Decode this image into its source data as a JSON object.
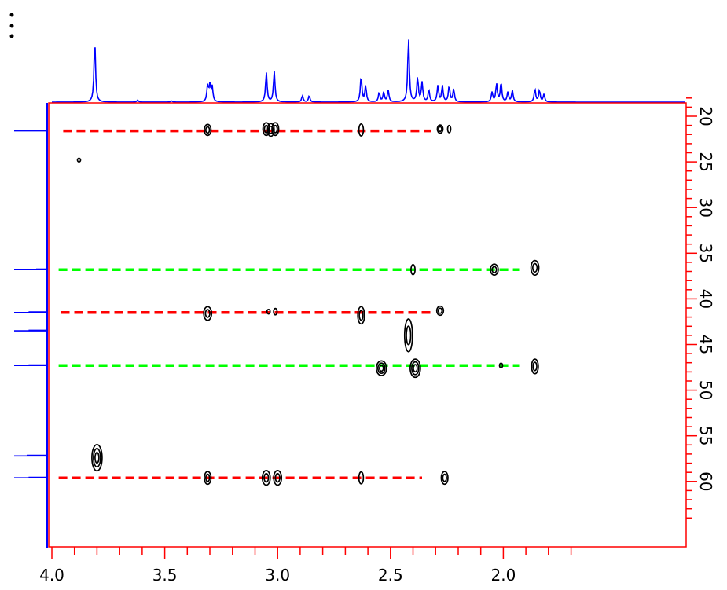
{
  "chart_data": {
    "type": "scatter",
    "title": "",
    "xlabel": "",
    "ylabel": "",
    "x_axis": {
      "reversed": true,
      "range": [
        4.02,
        1.65
      ],
      "major_ticks": [
        "4.0",
        "3.5",
        "3.0",
        "2.5",
        "2.0"
      ]
    },
    "y_axis": {
      "position": "right",
      "reversed": true,
      "range": [
        17,
        65
      ],
      "major_ticks": [
        "20",
        "25",
        "30",
        "35",
        "40",
        "45",
        "50",
        "55",
        "60"
      ]
    },
    "grid": false,
    "colors": {
      "frame": "#ff0000",
      "spectrum": "#0000ff",
      "contour": "#000000",
      "dash_red": "#ff0000",
      "dash_green": "#00ff00"
    },
    "f2_projection_peaks": [
      {
        "x": 3.81,
        "h": 0.97
      },
      {
        "x": 3.62,
        "h": 0.03
      },
      {
        "x": 3.47,
        "h": 0.02
      },
      {
        "x": 3.31,
        "h": 0.25
      },
      {
        "x": 3.3,
        "h": 0.25
      },
      {
        "x": 3.29,
        "h": 0.23
      },
      {
        "x": 3.05,
        "h": 0.46
      },
      {
        "x": 3.015,
        "h": 0.48
      },
      {
        "x": 2.89,
        "h": 0.1
      },
      {
        "x": 2.86,
        "h": 0.1
      },
      {
        "x": 2.63,
        "h": 0.4
      },
      {
        "x": 2.61,
        "h": 0.25
      },
      {
        "x": 2.55,
        "h": 0.15
      },
      {
        "x": 2.53,
        "h": 0.15
      },
      {
        "x": 2.51,
        "h": 0.18
      },
      {
        "x": 2.42,
        "h": 1.0
      },
      {
        "x": 2.38,
        "h": 0.38
      },
      {
        "x": 2.36,
        "h": 0.3
      },
      {
        "x": 2.33,
        "h": 0.18
      },
      {
        "x": 2.29,
        "h": 0.25
      },
      {
        "x": 2.27,
        "h": 0.25
      },
      {
        "x": 2.24,
        "h": 0.25
      },
      {
        "x": 2.22,
        "h": 0.2
      },
      {
        "x": 2.05,
        "h": 0.15
      },
      {
        "x": 2.03,
        "h": 0.28
      },
      {
        "x": 2.01,
        "h": 0.3
      },
      {
        "x": 1.98,
        "h": 0.15
      },
      {
        "x": 1.96,
        "h": 0.18
      },
      {
        "x": 1.86,
        "h": 0.2
      },
      {
        "x": 1.84,
        "h": 0.18
      },
      {
        "x": 1.82,
        "h": 0.12
      }
    ],
    "f1_projection_peaks": [
      {
        "y": 21.6,
        "h": 1.0
      },
      {
        "y": 36.8,
        "h": 0.5
      },
      {
        "y": 41.5,
        "h": 0.9
      },
      {
        "y": 43.5,
        "h": 0.9
      },
      {
        "y": 47.3,
        "h": 0.9
      },
      {
        "y": 57.2,
        "h": 1.0
      },
      {
        "y": 59.6,
        "h": 0.9
      }
    ],
    "dashed_lines": [
      {
        "y": 21.6,
        "x_start": 3.95,
        "x_end": 2.32,
        "color": "red"
      },
      {
        "y": 36.8,
        "x_start": 3.97,
        "x_end": 1.93,
        "color": "green"
      },
      {
        "y": 41.5,
        "x_start": 3.96,
        "x_end": 2.32,
        "color": "red"
      },
      {
        "y": 47.3,
        "x_start": 3.97,
        "x_end": 1.93,
        "color": "green"
      },
      {
        "y": 59.6,
        "x_start": 3.97,
        "x_end": 2.36,
        "color": "red"
      }
    ],
    "cross_peaks": [
      {
        "x": 3.31,
        "y": 21.5,
        "w": 0.03,
        "h": 1.2
      },
      {
        "x": 3.05,
        "y": 21.4,
        "w": 0.03,
        "h": 1.4
      },
      {
        "x": 3.03,
        "y": 21.5,
        "w": 0.03,
        "h": 1.4
      },
      {
        "x": 3.01,
        "y": 21.4,
        "w": 0.03,
        "h": 1.4
      },
      {
        "x": 2.63,
        "y": 21.5,
        "w": 0.02,
        "h": 1.3
      },
      {
        "x": 2.28,
        "y": 21.4,
        "w": 0.025,
        "h": 0.9
      },
      {
        "x": 2.24,
        "y": 21.4,
        "w": 0.01,
        "h": 0.8
      },
      {
        "x": 3.88,
        "y": 24.8,
        "w": 0.003,
        "h": 0.4
      },
      {
        "x": 2.4,
        "y": 36.8,
        "w": 0.018,
        "h": 1.1
      },
      {
        "x": 2.04,
        "y": 36.8,
        "w": 0.035,
        "h": 1.2
      },
      {
        "x": 1.86,
        "y": 36.6,
        "w": 0.035,
        "h": 1.6
      },
      {
        "x": 3.31,
        "y": 41.6,
        "w": 0.035,
        "h": 1.5
      },
      {
        "x": 3.04,
        "y": 41.4,
        "w": 0.01,
        "h": 0.5
      },
      {
        "x": 3.01,
        "y": 41.4,
        "w": 0.015,
        "h": 0.7
      },
      {
        "x": 2.63,
        "y": 41.8,
        "w": 0.03,
        "h": 1.9
      },
      {
        "x": 2.28,
        "y": 41.3,
        "w": 0.03,
        "h": 1.0
      },
      {
        "x": 2.42,
        "y": 44.0,
        "w": 0.035,
        "h": 3.6
      },
      {
        "x": 2.39,
        "y": 47.6,
        "w": 0.045,
        "h": 2.0
      },
      {
        "x": 2.54,
        "y": 47.6,
        "w": 0.045,
        "h": 1.6
      },
      {
        "x": 2.01,
        "y": 47.3,
        "w": 0.01,
        "h": 0.5
      },
      {
        "x": 1.86,
        "y": 47.4,
        "w": 0.03,
        "h": 1.6
      },
      {
        "x": 3.8,
        "y": 57.4,
        "w": 0.045,
        "h": 2.9
      },
      {
        "x": 3.31,
        "y": 59.6,
        "w": 0.03,
        "h": 1.4
      },
      {
        "x": 3.05,
        "y": 59.6,
        "w": 0.035,
        "h": 1.6
      },
      {
        "x": 3.0,
        "y": 59.6,
        "w": 0.035,
        "h": 1.6
      },
      {
        "x": 2.63,
        "y": 59.6,
        "w": 0.02,
        "h": 1.3
      },
      {
        "x": 2.26,
        "y": 59.6,
        "w": 0.03,
        "h": 1.4
      }
    ]
  }
}
